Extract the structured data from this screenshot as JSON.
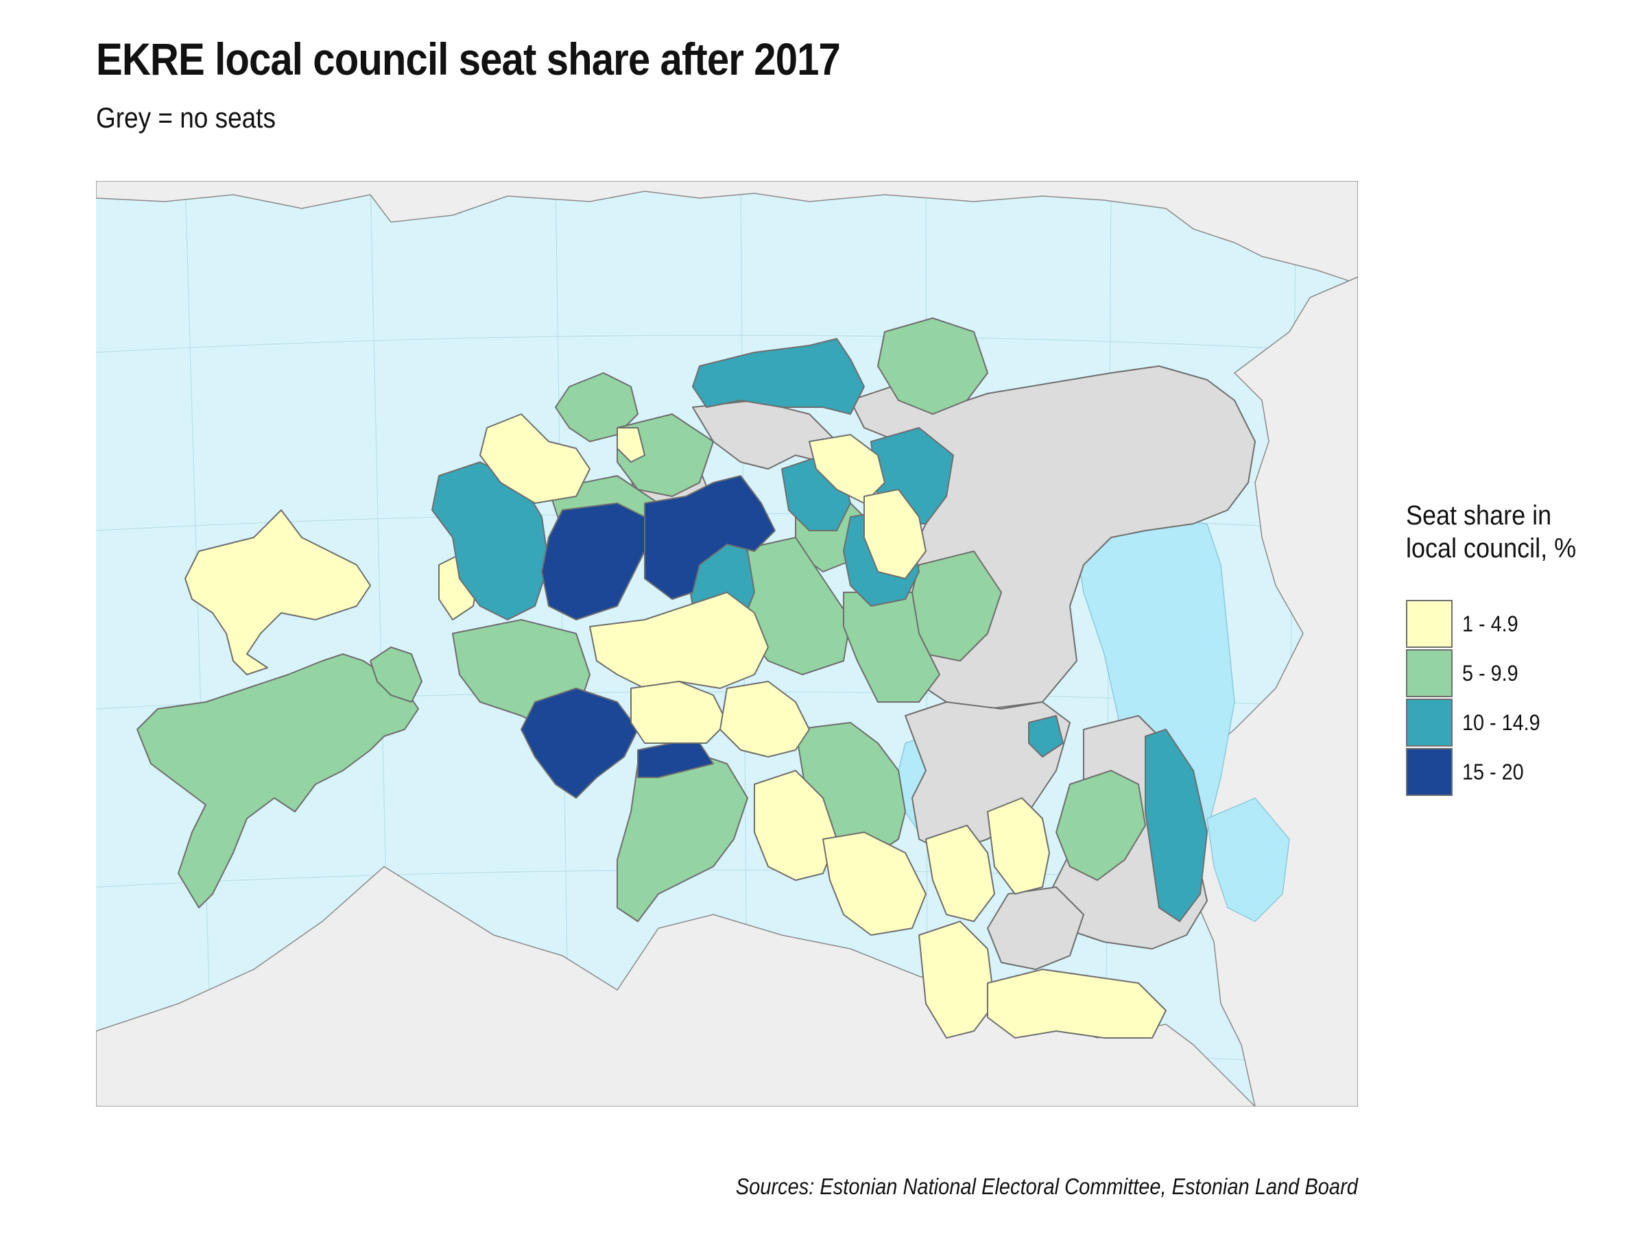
{
  "title": "EKRE local council seat share after 2017",
  "subtitle": "Grey = no seats",
  "source": "Sources: Estonian National Electoral Committee, Estonian Land Board",
  "legend": {
    "title": "Seat share in\nlocal council, %",
    "items": [
      {
        "label": "1 - 4.9",
        "color": "#ffffc2"
      },
      {
        "label": "5 - 9.9",
        "color": "#94d3a2"
      },
      {
        "label": "10 - 14.9",
        "color": "#37a6b8"
      },
      {
        "label": "15 - 20",
        "color": "#1b4796"
      }
    ]
  },
  "colors": {
    "water": "#d9f3fb",
    "lake": "#b3eaf9",
    "no_seats": "#dcdcdc",
    "outside_land": "#eeeeee",
    "border": "#6e6e6e"
  }
}
